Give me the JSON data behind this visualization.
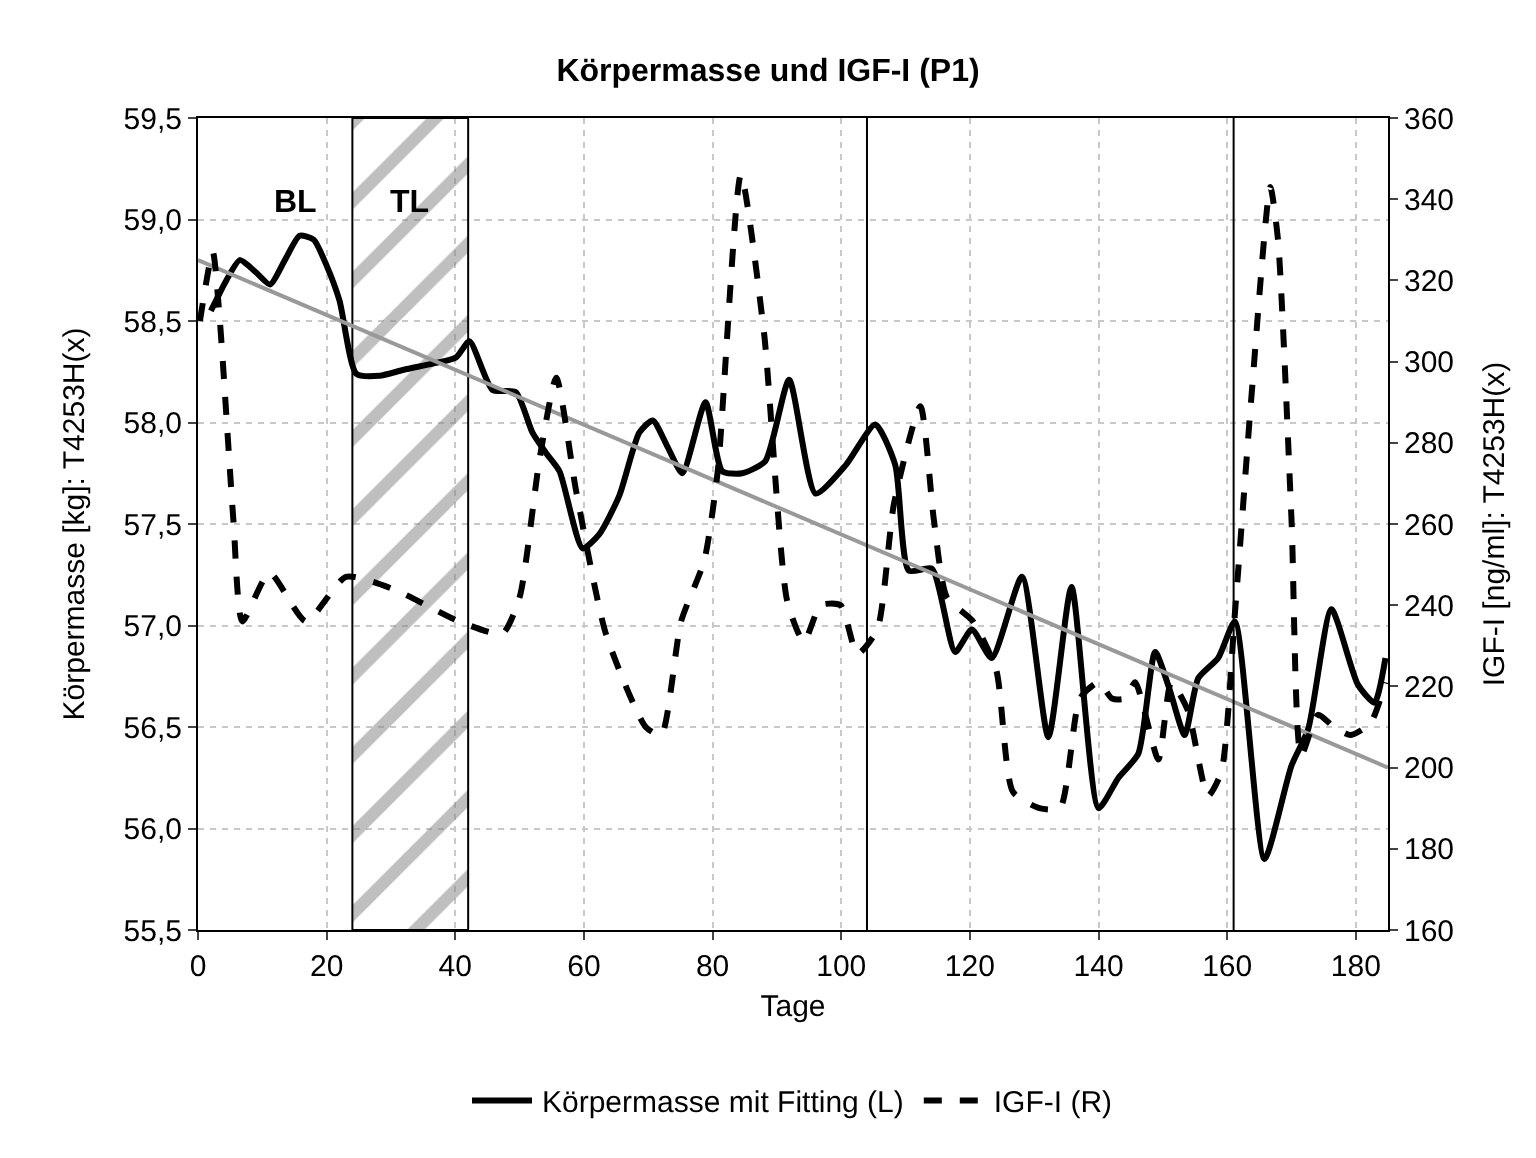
{
  "chart_data": {
    "type": "line",
    "title": "Körpermasse und IGF-I (P1)",
    "xlabel": "Tage",
    "ylabel": "Körpermasse [kg]: T4253H(x)",
    "y2label": "IGF-I [ng/ml]: T4253H(x)",
    "xlim": [
      0,
      185
    ],
    "xticks": [
      0,
      20,
      40,
      60,
      80,
      100,
      120,
      140,
      160,
      180
    ],
    "ylim": [
      55.5,
      59.5
    ],
    "yticks": [
      {
        "value": 55.5,
        "label": "55,5"
      },
      {
        "value": 56.0,
        "label": "56,0"
      },
      {
        "value": 56.5,
        "label": "56,5"
      },
      {
        "value": 57.0,
        "label": "57,0"
      },
      {
        "value": 57.5,
        "label": "57,5"
      },
      {
        "value": 58.0,
        "label": "58,0"
      },
      {
        "value": 58.5,
        "label": "58,5"
      },
      {
        "value": 59.0,
        "label": "59,0"
      },
      {
        "value": 59.5,
        "label": "59,5"
      }
    ],
    "y2lim": [
      160,
      360
    ],
    "y2ticks": [
      160,
      180,
      200,
      220,
      240,
      260,
      280,
      300,
      320,
      340,
      360
    ],
    "grid": true,
    "legend": "bottom",
    "marker": "none",
    "series": [
      {
        "name": "Körpermasse mit Fitting (L)",
        "color": "#000000",
        "line_style": "solid",
        "x": [
          2,
          4.4,
          6.5,
          9,
          11.2,
          13.5,
          15.8,
          18,
          19.9,
          22,
          24.6,
          28.2,
          32,
          36.5,
          40.1,
          42.2,
          45.8,
          49.4,
          52,
          54.1,
          56.2,
          59.8,
          62.4,
          65.5,
          68.6,
          70.7,
          73,
          75.3,
          78.9,
          81.5,
          84.6,
          88.2,
          91.9,
          96,
          100.7,
          105.3,
          108.4,
          110.5,
          114.1,
          117.7,
          120.3,
          123.4,
          128.1,
          132.2,
          135.8,
          140,
          143.1,
          146.2,
          148.8,
          151,
          153.4,
          155.5,
          158.6,
          161.2,
          165.8,
          170,
          172.6,
          176.2,
          180.3,
          182.9,
          184.6
        ],
        "values": [
          58.55,
          58.7,
          58.8,
          58.74,
          58.68,
          58.8,
          58.92,
          58.9,
          58.78,
          58.6,
          58.24,
          58.23,
          58.26,
          58.29,
          58.32,
          58.4,
          58.16,
          58.15,
          57.95,
          57.85,
          57.76,
          57.38,
          57.45,
          57.64,
          57.95,
          58.01,
          57.88,
          57.75,
          58.1,
          57.76,
          57.75,
          57.81,
          58.21,
          57.65,
          57.79,
          57.99,
          57.79,
          57.27,
          57.28,
          56.87,
          56.98,
          56.84,
          57.24,
          56.45,
          57.19,
          56.1,
          56.25,
          56.37,
          56.87,
          56.69,
          56.46,
          56.74,
          56.84,
          57.02,
          55.85,
          56.31,
          56.49,
          57.08,
          56.71,
          56.62,
          56.84
        ]
      },
      {
        "color": "#999999",
        "line_style": "solid",
        "x": [
          0,
          185
        ],
        "values": [
          58.8,
          56.3
        ]
      },
      {
        "name": "IGF-I (R)",
        "color": "#000000",
        "line_style": "dashed",
        "axis": "y2",
        "x": [
          0.3,
          2.3,
          3.4,
          5.5,
          6.9,
          11.1,
          16.8,
          23,
          30.3,
          40.6,
          47.3,
          50,
          53.1,
          55.7,
          58.8,
          63.4,
          69.6,
          72,
          75.1,
          78.7,
          80.8,
          84.4,
          88,
          91.6,
          94.2,
          96.8,
          99.9,
          102.5,
          105.6,
          108.2,
          112.3,
          114.4,
          116.4,
          120.5,
          124.1,
          126.7,
          130.8,
          134,
          137.1,
          140,
          142.1,
          144.1,
          145.7,
          149.3,
          151.3,
          153.9,
          157,
          159.1,
          161.2,
          163.8,
          166.7,
          167.9,
          170,
          171.5,
          174.1,
          176.6,
          179.2,
          182.3,
          184.6
        ],
        "values": [
          310,
          327,
          310,
          261,
          236,
          248,
          236,
          247,
          244,
          236,
          233,
          242,
          276,
          296,
          268,
          233,
          210,
          208,
          236,
          251,
          273,
          346,
          307,
          241,
          231,
          240,
          240,
          228,
          234,
          265,
          289,
          261,
          242,
          236,
          224,
          194,
          190,
          190,
          217,
          221,
          217,
          217,
          221,
          202,
          221,
          214,
          193,
          199,
          238,
          292,
          343,
          330,
          261,
          203,
          213,
          210,
          208,
          211,
          221
        ]
      }
    ],
    "bands": [
      {
        "axis": "x",
        "from": 24,
        "to": 42,
        "label": "TL",
        "color": "#808080"
      }
    ],
    "ref_lines": [
      {
        "axis": "x",
        "value": 104
      },
      {
        "axis": "x",
        "value": 161
      }
    ],
    "annotations": [
      "BL"
    ]
  }
}
